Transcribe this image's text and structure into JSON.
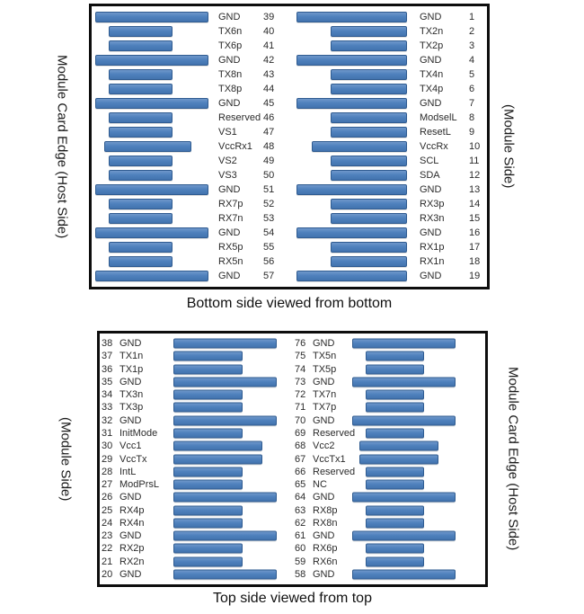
{
  "colors": {
    "bar_fill": "#4f81bd",
    "bar_border": "#2f5b90",
    "box_border": "#0d0d0d"
  },
  "top_diagram": {
    "caption": "Bottom side viewed from bottom",
    "left_axis_label": "Module Card Edge (Host Side)",
    "right_axis_label": "(Module Side)",
    "left_column_pins": [
      {
        "num": 39,
        "name": "GND",
        "type": "gnd"
      },
      {
        "num": 40,
        "name": "TX6n",
        "type": "sig"
      },
      {
        "num": 41,
        "name": "TX6p",
        "type": "sig"
      },
      {
        "num": 42,
        "name": "GND",
        "type": "gnd"
      },
      {
        "num": 43,
        "name": "TX8n",
        "type": "sig"
      },
      {
        "num": 44,
        "name": "TX8p",
        "type": "sig"
      },
      {
        "num": 45,
        "name": "GND",
        "type": "gnd"
      },
      {
        "num": 46,
        "name": "Reserved",
        "type": "sig"
      },
      {
        "num": 47,
        "name": "VS1",
        "type": "sig"
      },
      {
        "num": 48,
        "name": "VccRx1",
        "type": "pwr"
      },
      {
        "num": 49,
        "name": "VS2",
        "type": "sig"
      },
      {
        "num": 50,
        "name": "VS3",
        "type": "sig"
      },
      {
        "num": 51,
        "name": "GND",
        "type": "gnd"
      },
      {
        "num": 52,
        "name": "RX7p",
        "type": "sig"
      },
      {
        "num": 53,
        "name": "RX7n",
        "type": "sig"
      },
      {
        "num": 54,
        "name": "GND",
        "type": "gnd"
      },
      {
        "num": 55,
        "name": "RX5p",
        "type": "sig"
      },
      {
        "num": 56,
        "name": "RX5n",
        "type": "sig"
      },
      {
        "num": 57,
        "name": "GND",
        "type": "gnd"
      }
    ],
    "right_column_pins": [
      {
        "num": 1,
        "name": "GND",
        "type": "gnd"
      },
      {
        "num": 2,
        "name": "TX2n",
        "type": "sig"
      },
      {
        "num": 3,
        "name": "TX2p",
        "type": "sig"
      },
      {
        "num": 4,
        "name": "GND",
        "type": "gnd"
      },
      {
        "num": 5,
        "name": "TX4n",
        "type": "sig"
      },
      {
        "num": 6,
        "name": "TX4p",
        "type": "sig"
      },
      {
        "num": 7,
        "name": "GND",
        "type": "gnd"
      },
      {
        "num": 8,
        "name": "ModselL",
        "type": "sig"
      },
      {
        "num": 9,
        "name": "ResetL",
        "type": "sig"
      },
      {
        "num": 10,
        "name": "VccRx",
        "type": "pwr"
      },
      {
        "num": 11,
        "name": "SCL",
        "type": "sig"
      },
      {
        "num": 12,
        "name": "SDA",
        "type": "sig"
      },
      {
        "num": 13,
        "name": "GND",
        "type": "gnd"
      },
      {
        "num": 14,
        "name": "RX3p",
        "type": "sig"
      },
      {
        "num": 15,
        "name": "RX3n",
        "type": "sig"
      },
      {
        "num": 16,
        "name": "GND",
        "type": "gnd"
      },
      {
        "num": 17,
        "name": "RX1p",
        "type": "sig"
      },
      {
        "num": 18,
        "name": "RX1n",
        "type": "sig"
      },
      {
        "num": 19,
        "name": "GND",
        "type": "gnd"
      }
    ]
  },
  "bottom_diagram": {
    "caption": "Top side viewed from top",
    "left_axis_label": "(Module Side)",
    "right_axis_label": "Module Card Edge (Host Side)",
    "left_column_pins": [
      {
        "num": 38,
        "name": "GND",
        "type": "gnd"
      },
      {
        "num": 37,
        "name": "TX1n",
        "type": "sig"
      },
      {
        "num": 36,
        "name": "TX1p",
        "type": "sig"
      },
      {
        "num": 35,
        "name": "GND",
        "type": "gnd"
      },
      {
        "num": 34,
        "name": "TX3n",
        "type": "sig"
      },
      {
        "num": 33,
        "name": "TX3p",
        "type": "sig"
      },
      {
        "num": 32,
        "name": "GND",
        "type": "gnd"
      },
      {
        "num": 31,
        "name": "InitMode",
        "type": "sig"
      },
      {
        "num": 30,
        "name": "Vcc1",
        "type": "pwr"
      },
      {
        "num": 29,
        "name": "VccTx",
        "type": "pwr"
      },
      {
        "num": 28,
        "name": "IntL",
        "type": "sig"
      },
      {
        "num": 27,
        "name": "ModPrsL",
        "type": "sig"
      },
      {
        "num": 26,
        "name": "GND",
        "type": "gnd"
      },
      {
        "num": 25,
        "name": "RX4p",
        "type": "sig"
      },
      {
        "num": 24,
        "name": "RX4n",
        "type": "sig"
      },
      {
        "num": 23,
        "name": "GND",
        "type": "gnd"
      },
      {
        "num": 22,
        "name": "RX2p",
        "type": "sig"
      },
      {
        "num": 21,
        "name": "RX2n",
        "type": "sig"
      },
      {
        "num": 20,
        "name": "GND",
        "type": "gnd"
      }
    ],
    "right_column_pins": [
      {
        "num": 76,
        "name": "GND",
        "type": "gnd"
      },
      {
        "num": 75,
        "name": "TX5n",
        "type": "sig"
      },
      {
        "num": 74,
        "name": "TX5p",
        "type": "sig"
      },
      {
        "num": 73,
        "name": "GND",
        "type": "gnd"
      },
      {
        "num": 72,
        "name": "TX7n",
        "type": "sig"
      },
      {
        "num": 71,
        "name": "TX7p",
        "type": "sig"
      },
      {
        "num": 70,
        "name": "GND",
        "type": "gnd"
      },
      {
        "num": 69,
        "name": "Reserved",
        "type": "sig"
      },
      {
        "num": 68,
        "name": "Vcc2",
        "type": "pwr"
      },
      {
        "num": 67,
        "name": "VccTx1",
        "type": "pwr"
      },
      {
        "num": 66,
        "name": "Reserved",
        "type": "sig"
      },
      {
        "num": 65,
        "name": "NC",
        "type": "sig"
      },
      {
        "num": 64,
        "name": "GND",
        "type": "gnd"
      },
      {
        "num": 63,
        "name": "RX8p",
        "type": "sig"
      },
      {
        "num": 62,
        "name": "RX8n",
        "type": "sig"
      },
      {
        "num": 61,
        "name": "GND",
        "type": "gnd"
      },
      {
        "num": 60,
        "name": "RX6p",
        "type": "sig"
      },
      {
        "num": 59,
        "name": "RX6n",
        "type": "sig"
      },
      {
        "num": 58,
        "name": "GND",
        "type": "gnd"
      }
    ]
  }
}
